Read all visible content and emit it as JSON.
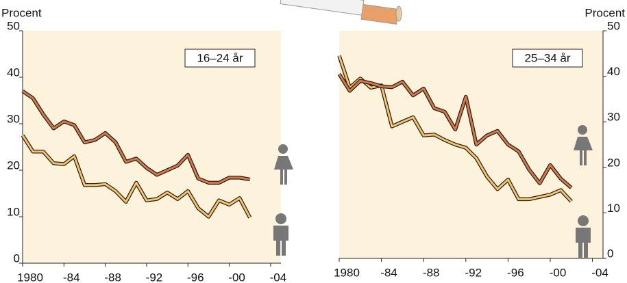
{
  "chart_data": [
    {
      "type": "line",
      "ylabel": "Procent",
      "annotation": "16–24 år",
      "yaxis_side": "left",
      "x": [
        1980,
        1981,
        1982,
        1983,
        1984,
        1985,
        1986,
        1987,
        1988,
        1989,
        1990,
        1991,
        1992,
        1993,
        1994,
        1995,
        1996,
        1997,
        1998,
        1999,
        2000,
        2001,
        2002
      ],
      "series": [
        {
          "color": "#d07a4e",
          "values": [
            37,
            35.5,
            32,
            29,
            30.5,
            29.7,
            26,
            26.5,
            28,
            26,
            21.8,
            22.5,
            20.5,
            19,
            20,
            21,
            23.3,
            18.2,
            17.3,
            17.3,
            18.4,
            18.4,
            18
          ]
        },
        {
          "color": "#f5c46f",
          "values": [
            27.5,
            24,
            24,
            21.5,
            21.3,
            23,
            16.8,
            16.8,
            17,
            15.5,
            13.2,
            17.3,
            13.5,
            13.8,
            15.2,
            13.8,
            15.5,
            11.8,
            10,
            13.5,
            12.6,
            14,
            9.8
          ]
        }
      ],
      "xlim": [
        1980,
        2005
      ],
      "ylim": [
        0,
        50
      ],
      "xticks": [
        1980,
        {
          "value": 1984,
          "label": "-84"
        },
        {
          "value": 1988,
          "label": "-88"
        },
        {
          "value": 1992,
          "label": "-92"
        },
        {
          "value": 1996,
          "label": "-96"
        },
        {
          "value": 2000,
          "label": "-00"
        },
        {
          "value": 2004,
          "label": "-04"
        }
      ],
      "yticks": [
        0,
        10,
        20,
        30,
        40,
        50
      ]
    },
    {
      "type": "line",
      "ylabel": "Procent",
      "annotation": "25–34 år",
      "yaxis_side": "right",
      "x": [
        1980,
        1981,
        1982,
        1983,
        1984,
        1985,
        1986,
        1987,
        1988,
        1989,
        1990,
        1991,
        1992,
        1993,
        1994,
        1995,
        1996,
        1997,
        1998,
        1999,
        2000,
        2001,
        2002
      ],
      "series": [
        {
          "color": "#d07a4e",
          "values": [
            40.5,
            36.8,
            39,
            38.5,
            37.8,
            37.6,
            38.8,
            35.8,
            37.3,
            33,
            32.2,
            28.3,
            35.5,
            25,
            27,
            28,
            25,
            23.5,
            19.5,
            16.5,
            20.5,
            17.5,
            15.5
          ]
        },
        {
          "color": "#f5c46f",
          "values": [
            44.5,
            37.5,
            39.5,
            37.5,
            38,
            29,
            30,
            31,
            27,
            27.2,
            26,
            25,
            24.3,
            22,
            18,
            15.2,
            17.3,
            13,
            13,
            13.5,
            14,
            15,
            12.5
          ]
        }
      ],
      "xlim": [
        1980,
        2005
      ],
      "ylim": [
        0,
        50
      ],
      "xticks": [
        1980,
        {
          "value": 1984,
          "label": "-84"
        },
        {
          "value": 1988,
          "label": "-88"
        },
        {
          "value": 1992,
          "label": "-92"
        },
        {
          "value": 1996,
          "label": "-96"
        },
        {
          "value": 2000,
          "label": "-00"
        },
        {
          "value": 2004,
          "label": "-04"
        }
      ],
      "yticks": [
        0,
        10,
        20,
        30,
        40,
        50
      ]
    }
  ]
}
